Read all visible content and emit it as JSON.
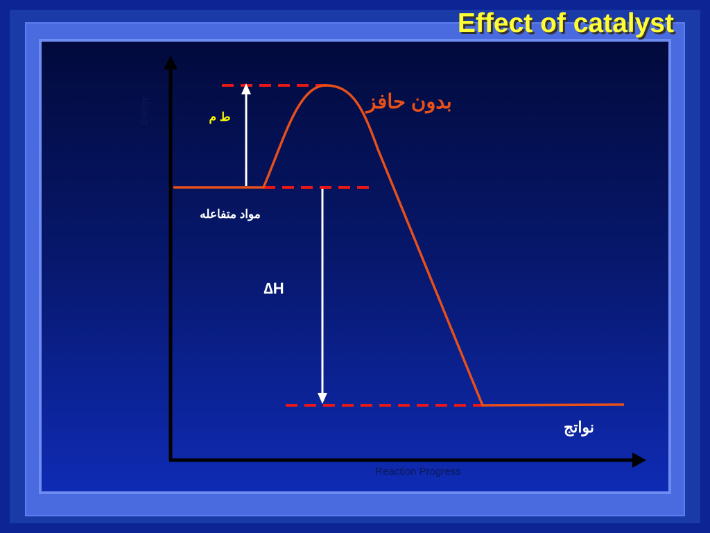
{
  "title": "Effect of catalyst",
  "axes": {
    "y_label": "Energy",
    "x_label": "Reaction Progress"
  },
  "labels": {
    "curve_label": "بدون حافز",
    "activation_energy": "ط م",
    "reactants": "مواد متفاعله",
    "delta_h": "∆H",
    "products": "نواتج"
  },
  "colors": {
    "background": "#0d2494",
    "title": "#ffff33",
    "curve": "#e8501a",
    "dashed_lines": "#e81818",
    "arrows": "#ffffff",
    "axes": "#000000",
    "energy_label": "#ffff00"
  }
}
